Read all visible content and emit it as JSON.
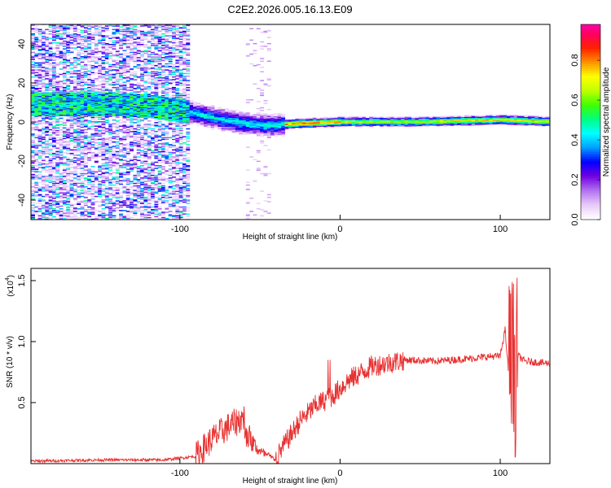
{
  "title": "C2E2.2026.005.16.13.E09",
  "chart_data": [
    {
      "type": "heatmap",
      "title": "C2E2.2026.005.16.13.E09",
      "xlabel": "Height of straight line (km)",
      "ylabel": "Frequency (Hz)",
      "xlim": [
        -193,
        131
      ],
      "ylim": [
        -50,
        50
      ],
      "xticks": [
        -100,
        0,
        100
      ],
      "xtick_labels": [
        "-100",
        "0",
        "100"
      ],
      "yticks": [
        40,
        20,
        0,
        -20,
        -40
      ],
      "ytick_labels": [
        "40",
        "20",
        "0",
        "-20",
        "-40"
      ],
      "colorbar": {
        "label": "Normalized spectral amplitude",
        "range": [
          0,
          1
        ],
        "ticks": [
          0.0,
          0.2,
          0.4,
          0.6,
          0.8
        ],
        "tick_labels": [
          "0.0",
          "0.2",
          "0.4",
          "0.6",
          "0.8"
        ],
        "colormap": [
          "#ffffff",
          "#e8c8f8",
          "#b070f0",
          "#7000e0",
          "#0000ff",
          "#00a0ff",
          "#00ffff",
          "#00ff80",
          "#40ff00",
          "#c0ff00",
          "#ffff00",
          "#ff9000",
          "#ff2000",
          "#ff0060",
          "#ff00d0"
        ]
      },
      "ridge": {
        "description": "narrow band near 0 Hz",
        "points_km_hz": [
          [
            -145,
            9
          ],
          [
            -120,
            8
          ],
          [
            -95,
            5
          ],
          [
            -80,
            2
          ],
          [
            -60,
            -1
          ],
          [
            -45,
            -2
          ],
          [
            -30,
            -1
          ],
          [
            0,
            0
          ],
          [
            50,
            0
          ],
          [
            100,
            1
          ],
          [
            131,
            0
          ]
        ]
      }
    },
    {
      "type": "line",
      "xlabel": "Height of straight line (km)",
      "ylabel": "SNR (10 * v/v)",
      "y_scale_label": "(x10",
      "y_scale_exponent": "4",
      "xlim": [
        -193,
        131
      ],
      "ylim": [
        0,
        1.6
      ],
      "xticks": [
        -100,
        0,
        100
      ],
      "xtick_labels": [
        "-100",
        "0",
        "100"
      ],
      "yticks": [
        0.5,
        1.0,
        1.5
      ],
      "ytick_labels": [
        "0.5",
        "1.0",
        "1.5"
      ],
      "series": [
        {
          "name": "SNR",
          "color": "#e83030",
          "envelope_km_value": [
            [
              -193,
              0.02
            ],
            [
              -150,
              0.03
            ],
            [
              -110,
              0.03
            ],
            [
              -90,
              0.06
            ],
            [
              -80,
              0.2
            ],
            [
              -70,
              0.3
            ],
            [
              -60,
              0.38
            ],
            [
              -55,
              0.22
            ],
            [
              -50,
              0.12
            ],
            [
              -40,
              0.04
            ],
            [
              -35,
              0.15
            ],
            [
              -25,
              0.35
            ],
            [
              -15,
              0.48
            ],
            [
              -5,
              0.55
            ],
            [
              5,
              0.68
            ],
            [
              20,
              0.8
            ],
            [
              40,
              0.85
            ],
            [
              60,
              0.84
            ],
            [
              80,
              0.86
            ],
            [
              95,
              0.88
            ],
            [
              100,
              0.88
            ],
            [
              103,
              1.1
            ],
            [
              106,
              0.6
            ],
            [
              108,
              1.55
            ],
            [
              110,
              0.9
            ],
            [
              115,
              0.84
            ],
            [
              131,
              0.82
            ]
          ]
        }
      ]
    }
  ]
}
